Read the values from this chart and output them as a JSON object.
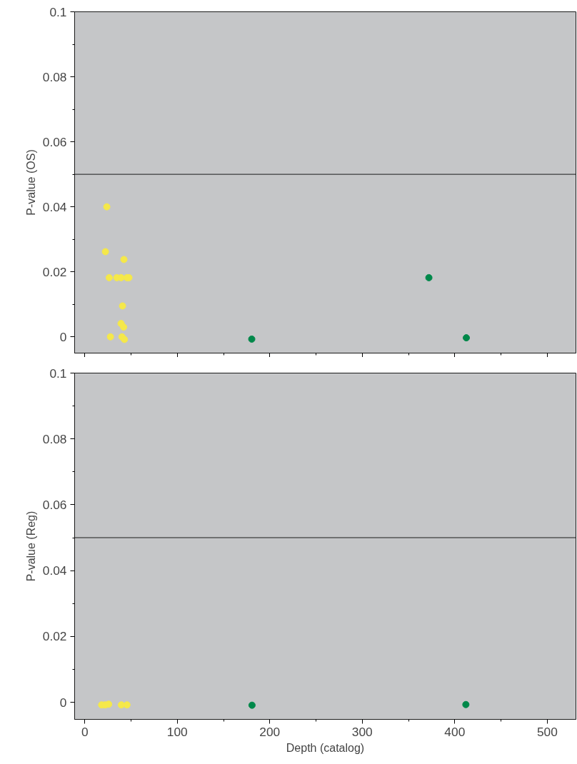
{
  "chart_data": [
    {
      "type": "scatter",
      "ylabel": "P-value (OS)",
      "xlim": [
        -11,
        531
      ],
      "ylim": [
        -0.005,
        0.1
      ],
      "tick_labels": "y",
      "grid": false,
      "marker": "circle",
      "xticks": [
        0,
        {
          "value": 50,
          "label": null
        },
        100,
        {
          "value": 150,
          "label": null
        },
        200,
        {
          "value": 250,
          "label": null
        },
        300,
        {
          "value": 350,
          "label": null
        },
        400,
        {
          "value": 450,
          "label": null
        },
        500
      ],
      "yticks": [
        0,
        {
          "value": 0.01,
          "label": null
        },
        0.02,
        {
          "value": 0.03,
          "label": null
        },
        0.04,
        {
          "value": 0.05,
          "label": null
        },
        0.06,
        {
          "value": 0.07,
          "label": null
        },
        0.08,
        {
          "value": 0.09,
          "label": null
        },
        0.1
      ],
      "ref_lines": [
        {
          "axis": "y",
          "value": 0.05,
          "color": "#1a1a1a"
        }
      ],
      "series": [
        {
          "color": "#f5e84a",
          "x": [
            23.8,
            22.3,
            42.3,
            26.4,
            34.6,
            39.2,
            45.6,
            47.7,
            40.8,
            39.2,
            42.0,
            27.7,
            40.2,
            42.8
          ],
          "values": [
            0.04,
            0.0262,
            0.0238,
            0.0182,
            0.0182,
            0.0182,
            0.0182,
            0.0182,
            0.0095,
            0.0041,
            0.003,
            0.0,
            0.0,
            -0.0008
          ]
        },
        {
          "color": "#00884a",
          "x": [
            180.5,
            372,
            412.5
          ],
          "values": [
            -0.0007,
            0.0182,
            -0.0003
          ]
        }
      ]
    },
    {
      "type": "scatter",
      "ylabel": "P-value (Reg)",
      "xlabel": "Depth (catalog)",
      "xlim": [
        -11,
        531
      ],
      "ylim": [
        -0.0052,
        0.1
      ],
      "grid": false,
      "marker": "circle",
      "xticks": [
        0,
        {
          "value": 50,
          "label": null
        },
        100,
        {
          "value": 150,
          "label": null
        },
        200,
        {
          "value": 250,
          "label": null
        },
        300,
        {
          "value": 350,
          "label": null
        },
        400,
        {
          "value": 450,
          "label": null
        },
        500
      ],
      "yticks": [
        0,
        {
          "value": 0.01,
          "label": null
        },
        0.02,
        {
          "value": 0.03,
          "label": null
        },
        0.04,
        {
          "value": 0.05,
          "label": null
        },
        0.06,
        {
          "value": 0.07,
          "label": null
        },
        0.08,
        {
          "value": 0.09,
          "label": null
        },
        0.1
      ],
      "ref_lines": [
        {
          "axis": "y",
          "value": 0.05,
          "color": "#1a1a1a"
        }
      ],
      "series": [
        {
          "color": "#f5e84a",
          "x": [
            18.2,
            22.0,
            25.8,
            39.5,
            45.6
          ],
          "values": [
            -0.0008,
            -0.0008,
            -0.0006,
            -0.0008,
            -0.0008
          ]
        },
        {
          "color": "#00884a",
          "x": [
            180.8,
            412
          ],
          "values": [
            -0.0009,
            -0.0007
          ]
        }
      ]
    }
  ]
}
